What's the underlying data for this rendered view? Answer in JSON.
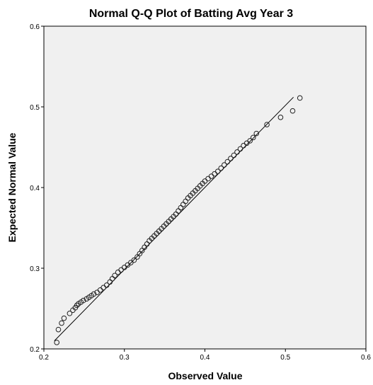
{
  "chart_data": {
    "type": "scatter",
    "title": "Normal Q-Q Plot of Batting Avg Year 3",
    "xlabel": "Observed Value",
    "ylabel": "Expected Normal Value",
    "xlim": [
      0.2,
      0.6
    ],
    "ylim": [
      0.2,
      0.6
    ],
    "xticks": [
      "0.2",
      "0.3",
      "0.4",
      "0.5",
      "0.6"
    ],
    "yticks": [
      "0.2",
      "0.3",
      "0.4",
      "0.5",
      "0.6"
    ],
    "grid": false,
    "legend": "none",
    "reference_line": {
      "x": [
        0.213,
        0.51
      ],
      "y": [
        0.21,
        0.512
      ]
    },
    "points": {
      "x": [
        0.216,
        0.218,
        0.222,
        0.225,
        0.232,
        0.236,
        0.239,
        0.241,
        0.243,
        0.246,
        0.249,
        0.253,
        0.256,
        0.259,
        0.262,
        0.266,
        0.27,
        0.274,
        0.278,
        0.282,
        0.285,
        0.288,
        0.292,
        0.296,
        0.3,
        0.304,
        0.308,
        0.312,
        0.316,
        0.319,
        0.322,
        0.325,
        0.328,
        0.331,
        0.334,
        0.337,
        0.34,
        0.343,
        0.346,
        0.349,
        0.352,
        0.355,
        0.358,
        0.361,
        0.364,
        0.367,
        0.37,
        0.373,
        0.376,
        0.379,
        0.382,
        0.385,
        0.388,
        0.391,
        0.394,
        0.397,
        0.4,
        0.404,
        0.408,
        0.412,
        0.416,
        0.42,
        0.424,
        0.428,
        0.432,
        0.436,
        0.44,
        0.444,
        0.448,
        0.452,
        0.456,
        0.46,
        0.464,
        0.477,
        0.494,
        0.509,
        0.518
      ],
      "y": [
        0.208,
        0.224,
        0.232,
        0.238,
        0.244,
        0.248,
        0.251,
        0.254,
        0.256,
        0.258,
        0.26,
        0.262,
        0.264,
        0.266,
        0.268,
        0.27,
        0.273,
        0.276,
        0.279,
        0.283,
        0.287,
        0.291,
        0.295,
        0.298,
        0.301,
        0.304,
        0.307,
        0.31,
        0.314,
        0.318,
        0.322,
        0.326,
        0.33,
        0.334,
        0.337,
        0.34,
        0.343,
        0.346,
        0.349,
        0.352,
        0.355,
        0.358,
        0.361,
        0.364,
        0.367,
        0.371,
        0.375,
        0.379,
        0.383,
        0.387,
        0.39,
        0.393,
        0.396,
        0.399,
        0.402,
        0.405,
        0.408,
        0.411,
        0.414,
        0.417,
        0.42,
        0.424,
        0.428,
        0.432,
        0.436,
        0.44,
        0.444,
        0.448,
        0.452,
        0.455,
        0.458,
        0.462,
        0.467,
        0.478,
        0.487,
        0.495,
        0.511
      ]
    }
  }
}
